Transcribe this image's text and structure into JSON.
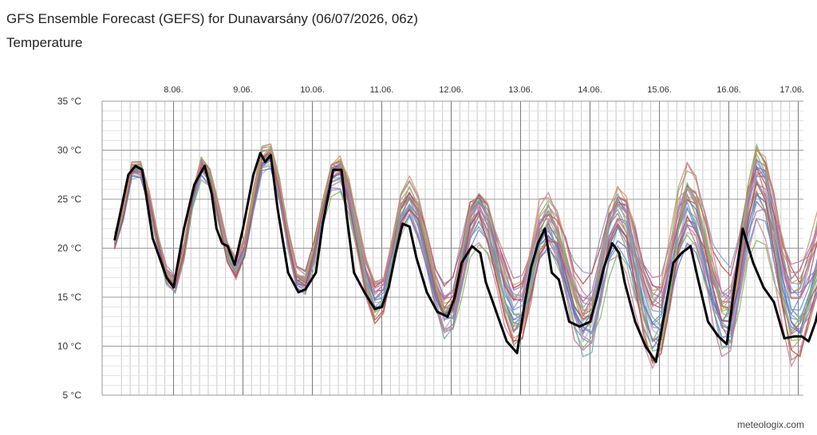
{
  "header": {
    "title": "GFS Ensemble Forecast (GEFS) for Dunavarsány (06/07/2026, 06z)",
    "subtitle": "Temperature"
  },
  "footer": {
    "credit": "meteologix.com"
  },
  "colors": {
    "control": "#000000",
    "members": [
      "#5b6fc4",
      "#c0739a",
      "#8a96b8",
      "#7fb86a",
      "#c8956b",
      "#b84a4a",
      "#9a6bc0",
      "#aab0b8",
      "#6a8ccf",
      "#d07aa0",
      "#a57a5a",
      "#78a4a8"
    ]
  },
  "chart_data": {
    "type": "line",
    "title": "GFS Ensemble Forecast (GEFS) for Dunavarsány (06/07/2026, 06z)",
    "subtitle": "Temperature",
    "x_ticks": [
      "8.06.",
      "9.06.",
      "10.06.",
      "11.06.",
      "12.06.",
      "13.06.",
      "14.06.",
      "15.06.",
      "16.06.",
      "17.06."
    ],
    "x_range_days": [
      7.15,
      17.4
    ],
    "y_ticks": [
      "5 °C",
      "10 °C",
      "15 °C",
      "20 °C",
      "25 °C",
      "30 °C",
      "35 °C"
    ],
    "ylim": [
      5,
      35
    ],
    "grid": true,
    "control_series": {
      "points": [
        [
          7.15,
          20.8
        ],
        [
          7.35,
          27.5
        ],
        [
          7.45,
          28.4
        ],
        [
          7.55,
          28.0
        ],
        [
          7.7,
          21.0
        ],
        [
          7.9,
          17.0
        ],
        [
          8.0,
          16.0
        ],
        [
          8.15,
          22.0
        ],
        [
          8.3,
          26.5
        ],
        [
          8.45,
          28.4
        ],
        [
          8.55,
          25.5
        ],
        [
          8.62,
          22.0
        ],
        [
          8.7,
          20.5
        ],
        [
          8.78,
          20.2
        ],
        [
          8.88,
          18.3
        ],
        [
          9.0,
          22.0
        ],
        [
          9.15,
          27.5
        ],
        [
          9.25,
          29.7
        ],
        [
          9.32,
          28.8
        ],
        [
          9.4,
          29.5
        ],
        [
          9.5,
          24.0
        ],
        [
          9.65,
          17.5
        ],
        [
          9.8,
          15.5
        ],
        [
          9.9,
          15.8
        ],
        [
          10.05,
          17.5
        ],
        [
          10.15,
          22.5
        ],
        [
          10.3,
          28.0
        ],
        [
          10.42,
          28.0
        ],
        [
          10.5,
          23.0
        ],
        [
          10.6,
          17.5
        ],
        [
          10.75,
          15.5
        ],
        [
          10.9,
          13.8
        ],
        [
          11.0,
          14.0
        ],
        [
          11.1,
          16.0
        ],
        [
          11.2,
          19.5
        ],
        [
          11.3,
          22.5
        ],
        [
          11.4,
          22.2
        ],
        [
          11.5,
          19.0
        ],
        [
          11.65,
          15.5
        ],
        [
          11.8,
          13.5
        ],
        [
          11.95,
          13.0
        ],
        [
          12.05,
          15.0
        ],
        [
          12.15,
          18.5
        ],
        [
          12.3,
          20.2
        ],
        [
          12.42,
          19.5
        ],
        [
          12.5,
          16.5
        ],
        [
          12.65,
          13.5
        ],
        [
          12.8,
          10.5
        ],
        [
          12.95,
          9.3
        ],
        [
          13.05,
          14.0
        ],
        [
          13.15,
          18.0
        ],
        [
          13.25,
          20.5
        ],
        [
          13.35,
          22.0
        ],
        [
          13.45,
          17.5
        ],
        [
          13.55,
          16.8
        ],
        [
          13.7,
          12.5
        ],
        [
          13.85,
          12.0
        ],
        [
          14.0,
          12.5
        ],
        [
          14.1,
          15.0
        ],
        [
          14.2,
          18.0
        ],
        [
          14.32,
          20.5
        ],
        [
          14.42,
          19.5
        ],
        [
          14.5,
          16.5
        ],
        [
          14.65,
          12.5
        ],
        [
          14.8,
          10.0
        ],
        [
          14.95,
          8.4
        ],
        [
          15.05,
          12.5
        ],
        [
          15.2,
          18.5
        ],
        [
          15.32,
          19.5
        ],
        [
          15.45,
          20.2
        ],
        [
          15.55,
          17.0
        ],
        [
          15.7,
          12.5
        ],
        [
          15.85,
          11.0
        ],
        [
          15.97,
          10.2
        ],
        [
          16.1,
          17.0
        ],
        [
          16.2,
          22.0
        ],
        [
          16.35,
          18.5
        ],
        [
          16.5,
          16.0
        ],
        [
          16.65,
          14.5
        ],
        [
          16.8,
          10.8
        ],
        [
          16.95,
          11.0
        ],
        [
          17.05,
          11.0
        ],
        [
          17.15,
          10.5
        ],
        [
          17.25,
          12.5
        ],
        [
          17.4,
          17.0
        ]
      ]
    },
    "members": {
      "count": 30,
      "anchors": [
        [
          7.15,
          20.5
        ],
        [
          7.45,
          28.6
        ],
        [
          8.0,
          16.2
        ],
        [
          8.42,
          28.5
        ],
        [
          8.9,
          17.8
        ],
        [
          9.35,
          29.8
        ],
        [
          9.85,
          16.2
        ],
        [
          10.35,
          28.2
        ],
        [
          10.95,
          14.2
        ],
        [
          11.38,
          25.0
        ],
        [
          11.95,
          13.2
        ],
        [
          12.38,
          24.0
        ],
        [
          12.95,
          13.0
        ],
        [
          13.38,
          22.5
        ],
        [
          13.95,
          12.5
        ],
        [
          14.4,
          23.5
        ],
        [
          14.95,
          11.8
        ],
        [
          15.42,
          24.5
        ],
        [
          15.97,
          12.8
        ],
        [
          16.42,
          27.0
        ],
        [
          16.95,
          13.0
        ],
        [
          17.4,
          19.5
        ]
      ],
      "spread": [
        [
          7.15,
          0.8
        ],
        [
          9.85,
          1.2
        ],
        [
          10.95,
          2.0
        ],
        [
          12.95,
          3.0
        ],
        [
          15.0,
          4.0
        ],
        [
          17.4,
          4.5
        ]
      ]
    }
  }
}
